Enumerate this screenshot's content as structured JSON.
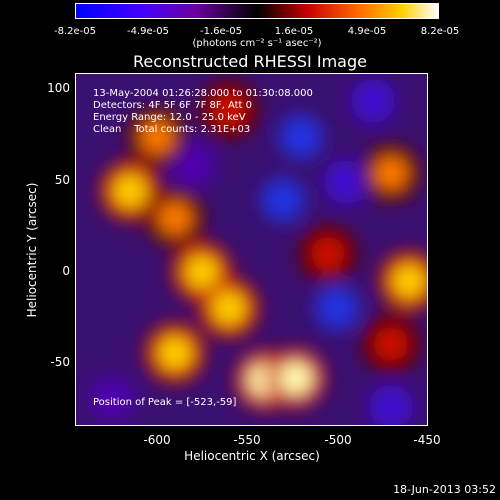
{
  "colorbar": {
    "ticks": [
      "-8.2e-05",
      "-4.9e-05",
      "-1.6e-05",
      "1.6e-05",
      "4.9e-05",
      "8.2e-05"
    ],
    "unit_label": "(photons cm⁻² s⁻¹ asec⁻²)"
  },
  "title": "Reconstructed RHESSI Image",
  "info": {
    "line1": "13-May-2004 01:26:28.000 to 01:30:08.000",
    "line2": "Detectors: 4F 5F 6F 7F 8F, Att 0",
    "line3": "Energy Range: 12.0 - 25.0 keV",
    "line4": "Clean    Total counts: 2.31E+03",
    "peak": "Position of Peak = [-523,-59]"
  },
  "axes": {
    "xlabel": "Heliocentric X (arcsec)",
    "ylabel": "Heliocentric Y (arcsec)",
    "xticks": [
      "-600",
      "-550",
      "-500",
      "-450"
    ],
    "yticks": [
      "100",
      "50",
      "0",
      "-50"
    ]
  },
  "footer": {
    "date": "18-Jun-2013 03:52"
  },
  "chart_data": {
    "type": "heatmap",
    "title": "Reconstructed RHESSI Image",
    "xlabel": "Heliocentric X (arcsec)",
    "ylabel": "Heliocentric Y (arcsec)",
    "xlim": [
      -645,
      -450
    ],
    "ylim": [
      -85,
      110
    ],
    "colorbar_range": [
      -8.2e-05,
      8.2e-05
    ],
    "colormap": "blue-purple-black-red-yellow-white",
    "peak": [
      -523,
      -59
    ],
    "bright_regions": [
      {
        "x": -615,
        "y": 45,
        "level": 0.9
      },
      {
        "x": -600,
        "y": 75,
        "level": 0.8
      },
      {
        "x": -590,
        "y": 30,
        "level": 0.7
      },
      {
        "x": -575,
        "y": 0,
        "level": 0.85
      },
      {
        "x": -560,
        "y": -20,
        "level": 0.9
      },
      {
        "x": -590,
        "y": -45,
        "level": 0.85
      },
      {
        "x": -540,
        "y": -60,
        "level": 0.95
      },
      {
        "x": -523,
        "y": -59,
        "level": 1.0
      },
      {
        "x": -505,
        "y": 10,
        "level": 0.5
      },
      {
        "x": -470,
        "y": 55,
        "level": 0.8
      },
      {
        "x": -460,
        "y": -5,
        "level": 0.9
      },
      {
        "x": -470,
        "y": -40,
        "level": 0.6
      },
      {
        "x": -560,
        "y": 90,
        "level": 0.5
      }
    ],
    "dark_regions": [
      {
        "x": -520,
        "y": 75,
        "level": -0.9
      },
      {
        "x": -530,
        "y": 40,
        "level": -0.8
      },
      {
        "x": -495,
        "y": 50,
        "level": -0.75
      },
      {
        "x": -500,
        "y": -20,
        "level": -0.85
      },
      {
        "x": -480,
        "y": 95,
        "level": -0.7
      },
      {
        "x": -625,
        "y": -70,
        "level": -0.6
      },
      {
        "x": -580,
        "y": 60,
        "level": -0.6
      },
      {
        "x": -470,
        "y": -75,
        "level": -0.7
      }
    ]
  }
}
